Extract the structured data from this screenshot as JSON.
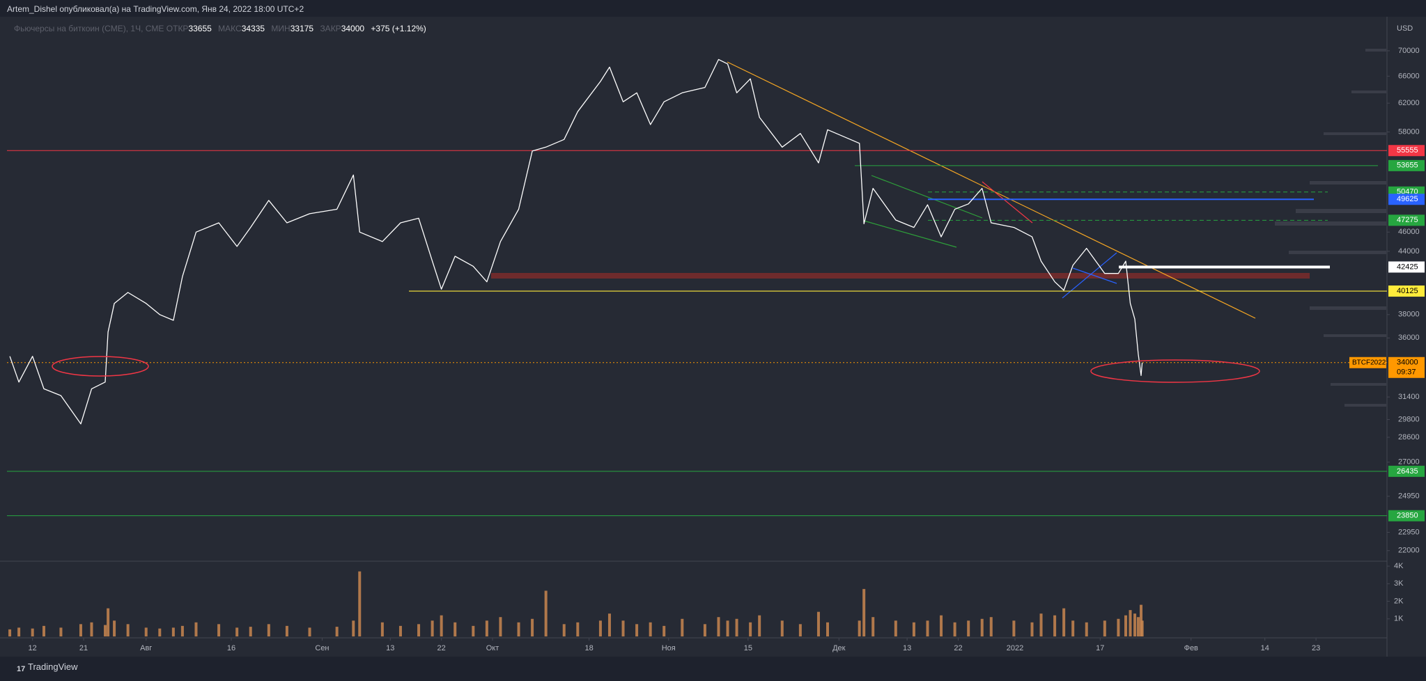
{
  "header": {
    "publisher": "Artem_Dishel опубликовал(а) на TradingView.com, Янв 24, 2022 18:00 UTC+2"
  },
  "footer": {
    "brand": "TradingView"
  },
  "chart_data": {
    "type": "line",
    "title": "Фьючерсы на биткоин (CME), 1Ч, CME",
    "ohlc": [
      {
        "label": "ОТКР",
        "value": 33655
      },
      {
        "label": "МАКС",
        "value": 34335
      },
      {
        "label": "МИН",
        "value": 33175
      },
      {
        "label": "ЗАКР",
        "value": 34000
      }
    ],
    "change": "+375 (+1.12%)",
    "currency": "USD",
    "color": "#ffffff",
    "x": [
      7,
      8.6,
      11,
      13,
      16,
      19.5,
      21.4,
      23.8,
      24.3,
      25.4,
      27.8,
      31,
      33.4,
      35.8,
      37.4,
      39.8,
      43.8,
      47,
      49.4,
      52.6,
      55.8,
      59.8,
      64.6,
      67.5,
      68.6,
      72.6,
      75.8,
      79,
      81.4,
      83,
      85.4,
      88.6,
      91,
      93.4,
      96.6,
      99,
      101.4,
      104.6,
      107,
      111,
      112.6,
      115,
      117.4,
      119.8,
      122.2,
      125.4,
      129.4,
      131.8,
      133.4,
      135,
      137.4,
      139,
      143,
      146.2,
      149.4,
      151,
      156.6,
      157.4,
      159,
      163,
      166.2,
      168.6,
      171,
      173.4,
      175.8,
      178.2,
      179.8,
      183.8,
      187,
      188.6,
      191,
      192.6,
      194.2,
      196.6,
      199.8,
      202.2,
      203.5,
      204.3,
      205.1,
      205.7,
      206.2,
      206.4
    ],
    "values": [
      34500,
      32500,
      34500,
      32000,
      31500,
      29500,
      32000,
      32500,
      36500,
      39000,
      40000,
      39000,
      38000,
      37500,
      41500,
      46000,
      47000,
      44500,
      46500,
      49500,
      47000,
      48000,
      48500,
      52500,
      46000,
      45000,
      47000,
      47500,
      43000,
      40300,
      43500,
      42500,
      41000,
      45000,
      48500,
      55500,
      56000,
      57000,
      60800,
      65200,
      67400,
      62200,
      63500,
      59000,
      62200,
      63500,
      64300,
      68600,
      67900,
      63500,
      65600,
      60000,
      56000,
      57800,
      54000,
      58300,
      56500,
      46900,
      50900,
      47300,
      46500,
      49000,
      45500,
      48500,
      49100,
      50900,
      47000,
      46500,
      45500,
      43000,
      41000,
      40200,
      42600,
      44300,
      41800,
      41800,
      43000,
      39000,
      37600,
      34700,
      33000,
      34000
    ],
    "volume": {
      "color": "#c98650",
      "values": [
        400,
        500,
        450,
        600,
        500,
        700,
        800,
        650,
        1600,
        900,
        700,
        500,
        450,
        500,
        600,
        800,
        700,
        500,
        550,
        700,
        600,
        500,
        550,
        900,
        3700,
        800,
        600,
        700,
        900,
        1200,
        800,
        600,
        900,
        1100,
        800,
        1000,
        2600,
        700,
        800,
        900,
        1300,
        900,
        700,
        800,
        600,
        1000,
        700,
        1100,
        900,
        1000,
        800,
        1200,
        900,
        700,
        1400,
        800,
        900,
        2700,
        1100,
        900,
        800,
        900,
        1200,
        800,
        900,
        1000,
        1100,
        900,
        800,
        1300,
        1200,
        1600,
        900,
        800,
        900,
        1000,
        1200,
        1500,
        1300,
        1100,
        1800,
        900
      ],
      "ylim": [
        0,
        4200
      ],
      "yticks": [
        {
          "value": 1000,
          "label": "1K"
        },
        {
          "value": 2000,
          "label": "2K"
        },
        {
          "value": 3000,
          "label": "3K"
        },
        {
          "value": 4000,
          "label": "4K"
        }
      ]
    },
    "xlim": [
      6.5,
      249.5
    ],
    "xticks": [
      {
        "value": 11,
        "label": "12"
      },
      {
        "value": 20,
        "label": "21"
      },
      {
        "value": 31,
        "label": "Авг"
      },
      {
        "value": 46,
        "label": "16"
      },
      {
        "value": 62,
        "label": "Сен"
      },
      {
        "value": 74,
        "label": "13"
      },
      {
        "value": 83,
        "label": "22"
      },
      {
        "value": 92,
        "label": "Окт"
      },
      {
        "value": 109,
        "label": "18"
      },
      {
        "value": 123,
        "label": "Ноя"
      },
      {
        "value": 137,
        "label": "15"
      },
      {
        "value": 153,
        "label": "Дек"
      },
      {
        "value": 165,
        "label": "13"
      },
      {
        "value": 174,
        "label": "22"
      },
      {
        "value": 184,
        "label": "2022"
      },
      {
        "value": 199,
        "label": "17"
      },
      {
        "value": 215,
        "label": "Фев"
      },
      {
        "value": 228,
        "label": "14"
      },
      {
        "value": 237,
        "label": "23"
      }
    ],
    "ylim": [
      21500,
      75500
    ],
    "log_scale": true,
    "yticks": [
      70000,
      66000,
      62000,
      58000,
      46000,
      44000,
      38000,
      36000,
      31400,
      29800,
      28600,
      27000,
      24950,
      22950,
      22000
    ],
    "levels": [
      {
        "value": 55555,
        "color": "#f23645",
        "style": "solid"
      },
      {
        "value": 53655,
        "color": "#26a640",
        "style": "solid"
      },
      {
        "value": 50470,
        "color": "#26a640",
        "style": "dashed"
      },
      {
        "value": 49625,
        "color": "#2962ff",
        "style": "solid"
      },
      {
        "value": 47275,
        "color": "#26a640",
        "style": "dashed"
      },
      {
        "value": 42425,
        "color": "#ffffff",
        "style": "solid"
      },
      {
        "value": 40125,
        "color": "#ffeb3b",
        "style": "solid"
      },
      {
        "value": 34000,
        "color": "#ff9800",
        "style": "dotted"
      },
      {
        "value": 26435,
        "color": "#26a640",
        "style": "solid"
      },
      {
        "value": 23850,
        "color": "#26a640",
        "style": "solid"
      }
    ],
    "symbol_label": "BTCF2022",
    "countdown": "09:37"
  }
}
